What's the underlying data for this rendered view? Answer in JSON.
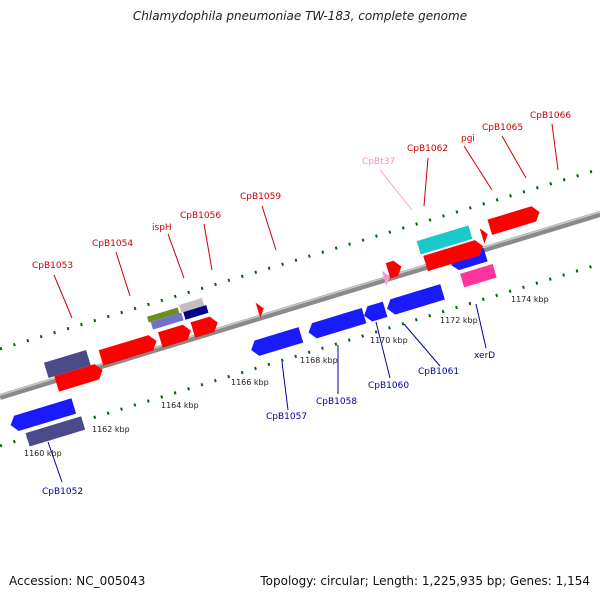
{
  "title": "Chlamydophila pneumoniae TW-183, complete genome",
  "footer": {
    "accession": "Accession: NC_005043",
    "summary": "Topology: circular; Length: 1,225,935 bp; Genes: 1,154"
  },
  "colors": {
    "forward_cds": "#ff0000",
    "reverse_cds": "#0000ff",
    "forward_label": "#cc0000",
    "reverse_label": "#000099",
    "trna": "#ff88cc",
    "tick": "#006600",
    "backbone": "#888888"
  },
  "scale_labels": [
    "1160 kbp",
    "1162 kbp",
    "1164 kbp",
    "1166 kbp",
    "1168 kbp",
    "1170 kbp",
    "1172 kbp",
    "1174 kbp"
  ],
  "gene_labels": [
    {
      "text": "CpB1052",
      "strand": "reverse"
    },
    {
      "text": "CpB1053",
      "strand": "forward"
    },
    {
      "text": "CpB1054",
      "strand": "forward"
    },
    {
      "text": "ispH",
      "strand": "forward"
    },
    {
      "text": "CpB1056",
      "strand": "forward"
    },
    {
      "text": "CpB1057",
      "strand": "reverse"
    },
    {
      "text": "CpB1058",
      "strand": "reverse"
    },
    {
      "text": "CpB1059",
      "strand": "forward"
    },
    {
      "text": "CpB1060",
      "strand": "reverse"
    },
    {
      "text": "CpB1061",
      "strand": "reverse"
    },
    {
      "text": "CpBt37",
      "strand": "trna"
    },
    {
      "text": "CpB1062",
      "strand": "forward"
    },
    {
      "text": "xerD",
      "strand": "reverse"
    },
    {
      "text": "pgi",
      "strand": "forward"
    },
    {
      "text": "CpB1065",
      "strand": "forward"
    },
    {
      "text": "CpB1066",
      "strand": "forward"
    }
  ]
}
